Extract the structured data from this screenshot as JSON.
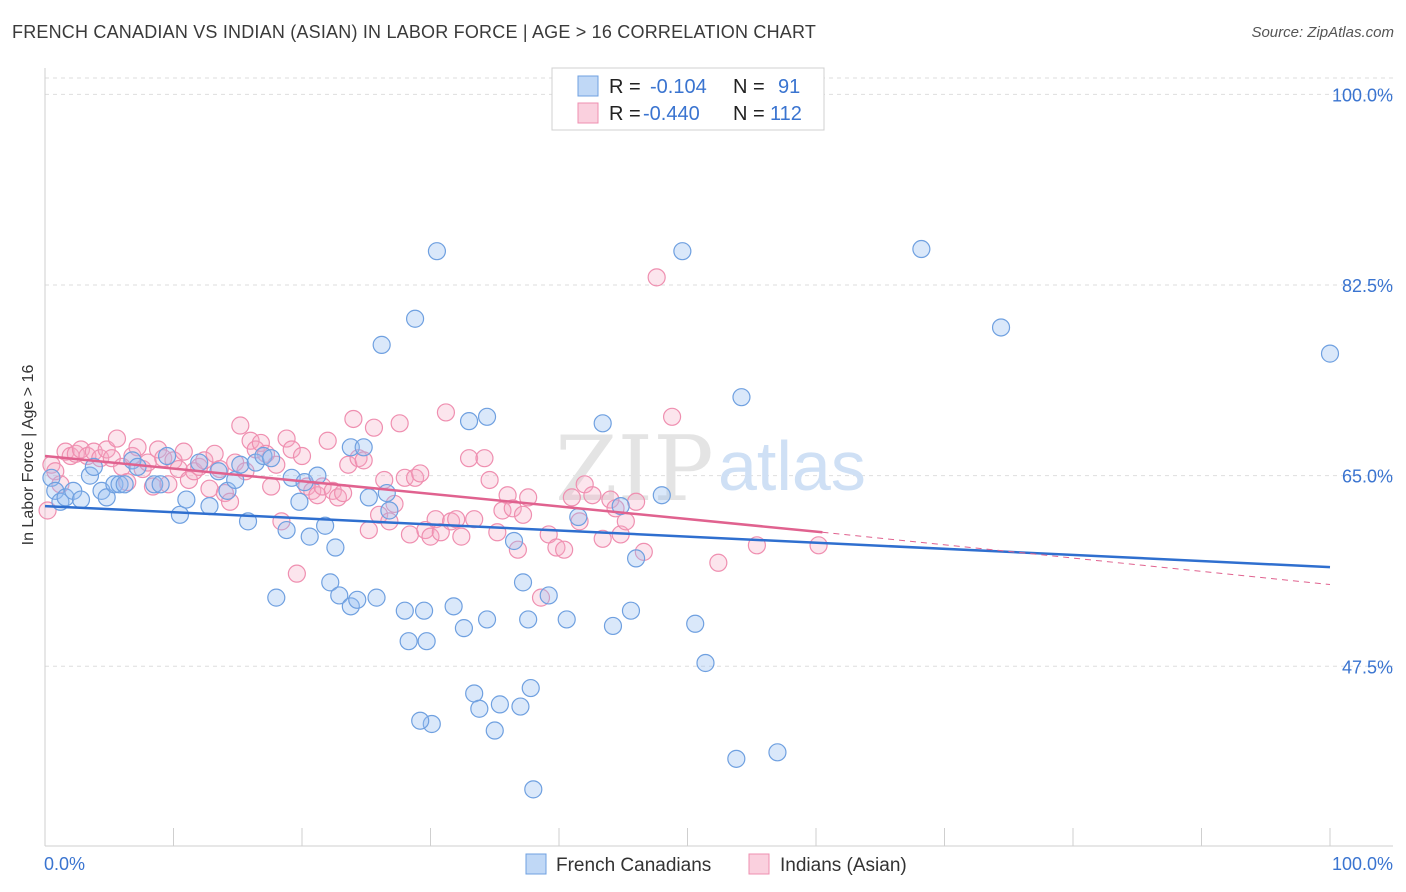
{
  "title": "FRENCH CANADIAN VS INDIAN (ASIAN) IN LABOR FORCE | AGE > 16 CORRELATION CHART",
  "source": "Source: ZipAtlas.com",
  "watermark": {
    "zip": "ZIP",
    "atlas": "atlas"
  },
  "colors": {
    "blue": "#6fa0e0",
    "blue_fill": "rgba(150,190,240,0.35)",
    "blue_line": "#2f6fcf",
    "pink": "#ef8fb0",
    "pink_fill": "rgba(245,170,195,0.30)",
    "pink_line": "#e0628f",
    "tick": "#3a74d0"
  },
  "legend": {
    "r_label": "R =",
    "n_label": "N =",
    "series1": {
      "r": "-0.104",
      "n": "91"
    },
    "series2": {
      "r": "-0.440",
      "n": "112"
    }
  },
  "bottom_legend": {
    "series1": "French Canadians",
    "series2": "Indians (Asian)"
  },
  "chart_data": {
    "type": "scatter",
    "title": "FRENCH CANADIAN VS INDIAN (ASIAN) IN LABOR FORCE | AGE > 16 CORRELATION CHART",
    "xlabel": "",
    "ylabel": "In Labor Force | Age > 16",
    "xlim": [
      0,
      100
    ],
    "ylim": [
      31,
      101.5
    ],
    "x_tick_labels": [
      "0.0%",
      "100.0%"
    ],
    "y_ticks": [
      47.5,
      65.0,
      82.5,
      100.0
    ],
    "y_tick_labels": [
      "47.5%",
      "65.0%",
      "82.5%",
      "100.0%"
    ],
    "grid": true,
    "legend_position": "top-center",
    "series": [
      {
        "name": "French Canadians",
        "r": -0.104,
        "n": 91,
        "trend": {
          "x": [
            0,
            100
          ],
          "y": [
            62.2,
            56.6
          ]
        },
        "points": [
          [
            0.5,
            64.8
          ],
          [
            0.8,
            63.6
          ],
          [
            1.2,
            62.6
          ],
          [
            1.6,
            63.0
          ],
          [
            2.2,
            63.6
          ],
          [
            2.8,
            62.8
          ],
          [
            3.5,
            65.0
          ],
          [
            3.8,
            65.8
          ],
          [
            4.4,
            63.6
          ],
          [
            4.8,
            63.0
          ],
          [
            5.4,
            64.2
          ],
          [
            5.8,
            64.2
          ],
          [
            6.2,
            64.2
          ],
          [
            6.8,
            66.4
          ],
          [
            7.2,
            65.8
          ],
          [
            8.5,
            64.2
          ],
          [
            9.0,
            64.2
          ],
          [
            9.5,
            66.8
          ],
          [
            10.5,
            61.4
          ],
          [
            11.0,
            62.8
          ],
          [
            12.0,
            66.2
          ],
          [
            12.8,
            62.2
          ],
          [
            13.5,
            65.4
          ],
          [
            14.2,
            63.6
          ],
          [
            14.8,
            64.6
          ],
          [
            15.2,
            66.0
          ],
          [
            15.8,
            60.8
          ],
          [
            16.4,
            66.2
          ],
          [
            17.0,
            66.8
          ],
          [
            17.6,
            66.6
          ],
          [
            18.0,
            53.8
          ],
          [
            18.8,
            60.0
          ],
          [
            19.2,
            64.8
          ],
          [
            19.8,
            62.6
          ],
          [
            20.2,
            64.4
          ],
          [
            20.6,
            59.4
          ],
          [
            21.2,
            65.0
          ],
          [
            21.8,
            60.4
          ],
          [
            22.2,
            55.2
          ],
          [
            22.6,
            58.4
          ],
          [
            22.9,
            54.0
          ],
          [
            23.8,
            67.6
          ],
          [
            23.8,
            53.0
          ],
          [
            24.3,
            53.6
          ],
          [
            24.8,
            67.6
          ],
          [
            25.2,
            63.0
          ],
          [
            25.8,
            53.8
          ],
          [
            26.2,
            77.0
          ],
          [
            26.6,
            63.4
          ],
          [
            26.8,
            61.8
          ],
          [
            28.0,
            52.6
          ],
          [
            28.3,
            49.8
          ],
          [
            28.8,
            79.4
          ],
          [
            29.5,
            52.6
          ],
          [
            29.7,
            49.8
          ],
          [
            30.1,
            42.2
          ],
          [
            30.5,
            85.6
          ],
          [
            31.8,
            53.0
          ],
          [
            32.6,
            51.0
          ],
          [
            33.0,
            70.0
          ],
          [
            33.4,
            45.0
          ],
          [
            33.8,
            43.6
          ],
          [
            34.4,
            70.4
          ],
          [
            34.4,
            51.8
          ],
          [
            35.0,
            41.6
          ],
          [
            35.4,
            44.0
          ],
          [
            36.5,
            59.0
          ],
          [
            37.0,
            43.8
          ],
          [
            37.2,
            55.2
          ],
          [
            37.6,
            51.8
          ],
          [
            38.0,
            36.2
          ],
          [
            40.6,
            51.8
          ],
          [
            41.5,
            61.2
          ],
          [
            43.4,
            69.8
          ],
          [
            44.8,
            62.2
          ],
          [
            45.6,
            52.6
          ],
          [
            46.0,
            57.4
          ],
          [
            48.0,
            63.2
          ],
          [
            49.6,
            85.6
          ],
          [
            50.6,
            51.4
          ],
          [
            51.4,
            47.8
          ],
          [
            53.8,
            39.0
          ],
          [
            54.2,
            72.2
          ],
          [
            57.0,
            39.6
          ],
          [
            68.2,
            85.8
          ],
          [
            74.4,
            78.6
          ],
          [
            100.0,
            76.2
          ],
          [
            37.8,
            45.5
          ],
          [
            29.2,
            42.5
          ],
          [
            44.2,
            51.2
          ],
          [
            39.2,
            54.0
          ]
        ]
      },
      {
        "name": "Indians (Asian)",
        "r": -0.44,
        "n": 112,
        "trend": {
          "x": [
            0,
            60.5
          ],
          "y": [
            66.8,
            59.8
          ]
        },
        "trend_extension": {
          "x": [
            60.5,
            100
          ],
          "y": [
            59.8,
            55.0
          ]
        },
        "points": [
          [
            0.2,
            61.8
          ],
          [
            0.5,
            66.0
          ],
          [
            0.8,
            65.4
          ],
          [
            1.2,
            64.2
          ],
          [
            1.6,
            67.2
          ],
          [
            2.0,
            66.8
          ],
          [
            2.4,
            67.0
          ],
          [
            2.8,
            67.4
          ],
          [
            3.3,
            66.8
          ],
          [
            3.8,
            67.2
          ],
          [
            4.3,
            66.6
          ],
          [
            4.8,
            67.4
          ],
          [
            5.2,
            66.6
          ],
          [
            5.6,
            68.4
          ],
          [
            6.0,
            65.8
          ],
          [
            6.4,
            64.4
          ],
          [
            6.8,
            66.8
          ],
          [
            7.2,
            67.6
          ],
          [
            7.6,
            65.6
          ],
          [
            8.0,
            66.2
          ],
          [
            8.4,
            64.0
          ],
          [
            8.8,
            67.4
          ],
          [
            9.2,
            66.6
          ],
          [
            9.6,
            64.2
          ],
          [
            10.0,
            66.4
          ],
          [
            10.4,
            65.6
          ],
          [
            10.8,
            67.2
          ],
          [
            11.2,
            64.6
          ],
          [
            11.6,
            65.4
          ],
          [
            12.0,
            65.8
          ],
          [
            12.4,
            66.4
          ],
          [
            12.8,
            63.8
          ],
          [
            13.2,
            67.0
          ],
          [
            13.6,
            65.6
          ],
          [
            14.0,
            63.4
          ],
          [
            14.4,
            62.6
          ],
          [
            14.8,
            66.2
          ],
          [
            15.2,
            69.6
          ],
          [
            15.6,
            65.4
          ],
          [
            16.0,
            68.2
          ],
          [
            16.4,
            67.4
          ],
          [
            16.8,
            68.0
          ],
          [
            17.2,
            67.0
          ],
          [
            17.6,
            64.0
          ],
          [
            18.0,
            66.0
          ],
          [
            18.4,
            60.8
          ],
          [
            18.8,
            68.4
          ],
          [
            19.2,
            67.4
          ],
          [
            19.6,
            56.0
          ],
          [
            20.0,
            66.8
          ],
          [
            20.4,
            64.0
          ],
          [
            20.8,
            63.6
          ],
          [
            21.2,
            63.2
          ],
          [
            21.6,
            64.0
          ],
          [
            22.0,
            68.2
          ],
          [
            22.4,
            63.6
          ],
          [
            22.8,
            63.0
          ],
          [
            23.2,
            63.4
          ],
          [
            23.6,
            66.0
          ],
          [
            24.0,
            70.2
          ],
          [
            24.4,
            66.6
          ],
          [
            24.8,
            66.4
          ],
          [
            25.2,
            60.0
          ],
          [
            25.6,
            69.4
          ],
          [
            26.0,
            61.4
          ],
          [
            26.4,
            64.6
          ],
          [
            26.8,
            60.8
          ],
          [
            27.2,
            62.4
          ],
          [
            27.6,
            69.8
          ],
          [
            28.0,
            64.8
          ],
          [
            28.4,
            59.6
          ],
          [
            28.8,
            64.8
          ],
          [
            29.2,
            65.2
          ],
          [
            29.6,
            60.0
          ],
          [
            30.0,
            59.4
          ],
          [
            30.4,
            61.0
          ],
          [
            30.8,
            59.8
          ],
          [
            31.2,
            70.8
          ],
          [
            31.6,
            60.8
          ],
          [
            32.0,
            61.0
          ],
          [
            32.4,
            59.4
          ],
          [
            33.0,
            66.6
          ],
          [
            33.4,
            61.0
          ],
          [
            34.2,
            66.6
          ],
          [
            34.6,
            64.6
          ],
          [
            35.2,
            59.8
          ],
          [
            35.6,
            61.8
          ],
          [
            36.0,
            63.2
          ],
          [
            36.4,
            62.0
          ],
          [
            36.8,
            58.2
          ],
          [
            37.2,
            61.4
          ],
          [
            37.6,
            63.0
          ],
          [
            38.6,
            53.8
          ],
          [
            39.2,
            59.6
          ],
          [
            39.8,
            58.4
          ],
          [
            40.4,
            58.2
          ],
          [
            41.0,
            63.0
          ],
          [
            41.6,
            60.8
          ],
          [
            42.0,
            64.2
          ],
          [
            42.6,
            63.2
          ],
          [
            43.4,
            59.2
          ],
          [
            44.0,
            62.8
          ],
          [
            44.4,
            62.0
          ],
          [
            44.8,
            59.6
          ],
          [
            45.2,
            60.8
          ],
          [
            46.0,
            62.6
          ],
          [
            46.6,
            58.0
          ],
          [
            47.6,
            83.2
          ],
          [
            48.8,
            70.4
          ],
          [
            52.4,
            57.0
          ],
          [
            55.4,
            58.6
          ],
          [
            60.2,
            58.6
          ]
        ]
      }
    ]
  }
}
